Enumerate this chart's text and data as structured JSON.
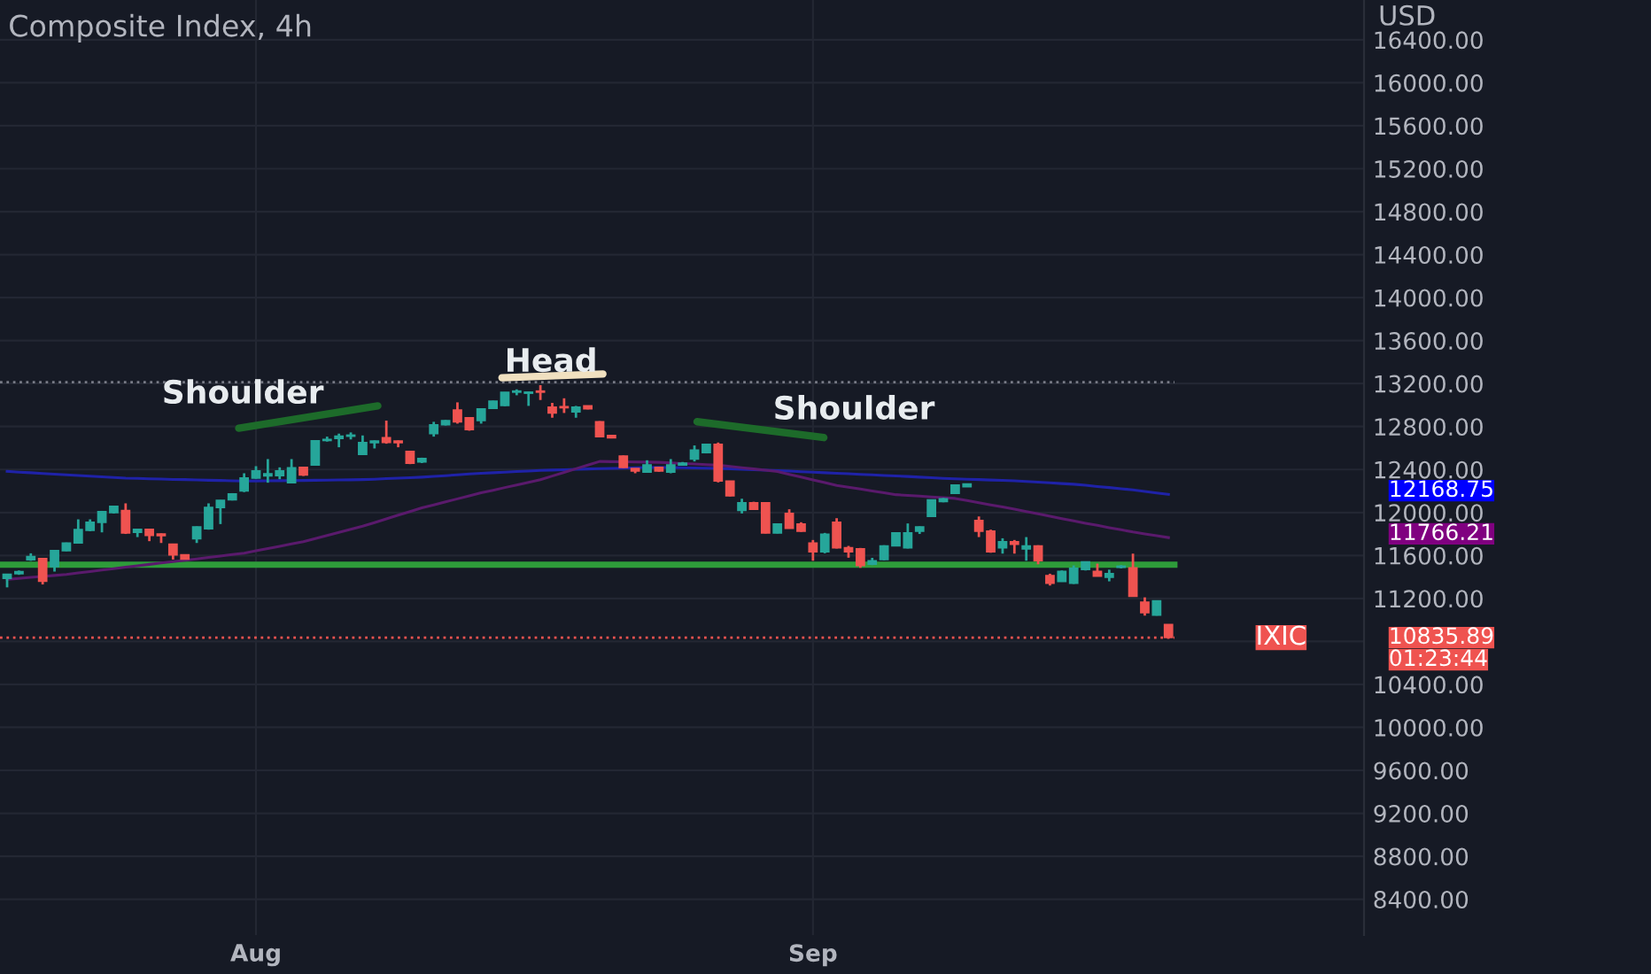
{
  "chart_data": {
    "type": "candlestick",
    "title": "Composite Index, 4h",
    "ylabel": "USD",
    "categories": [
      null,
      null,
      null,
      null,
      null,
      null,
      null,
      null,
      null,
      null,
      null,
      null,
      null,
      null,
      null,
      null,
      null,
      null,
      null,
      null,
      null,
      "Aug",
      null,
      null,
      null,
      null,
      null,
      null,
      null,
      null,
      null,
      null,
      null,
      null,
      null,
      null,
      null,
      null,
      null,
      null,
      null,
      null,
      null,
      null,
      null,
      null,
      null,
      null,
      null,
      null,
      null,
      null,
      null,
      null,
      null,
      null,
      null,
      null,
      null,
      null,
      null,
      null,
      null,
      null,
      null,
      null,
      null,
      null,
      "Sep",
      null,
      null,
      null,
      null,
      null,
      null,
      null,
      null,
      null,
      null,
      null,
      null,
      null,
      null,
      null,
      null,
      null,
      null,
      null,
      null,
      null,
      null,
      null,
      null,
      null,
      null,
      null,
      null,
      null,
      null
    ],
    "ohlc": [
      [
        11386,
        11425,
        11303,
        11425
      ],
      [
        11430,
        11460,
        11420,
        11450
      ],
      [
        11560,
        11620,
        11550,
        11590
      ],
      [
        11570,
        11575,
        11330,
        11360
      ],
      [
        11496,
        11650,
        11450,
        11645
      ],
      [
        11645,
        11720,
        11640,
        11716
      ],
      [
        11716,
        11936,
        11710,
        11840
      ],
      [
        11835,
        11936,
        11826,
        11908
      ],
      [
        11908,
        12015,
        11815,
        12008
      ],
      [
        11998,
        12060,
        11990,
        12057
      ],
      [
        12019,
        12085,
        11800,
        11809
      ],
      [
        11815,
        11845,
        11771,
        11842
      ],
      [
        11842,
        11850,
        11733,
        11787
      ],
      [
        11800,
        11805,
        11716,
        11785
      ],
      [
        11705,
        11710,
        11562,
        11606
      ],
      [
        11606,
        11610,
        11562,
        11566
      ],
      [
        11755,
        11870,
        11716,
        11865
      ],
      [
        11848,
        12085,
        11840,
        12046
      ],
      [
        12046,
        12115,
        11892,
        12112
      ],
      [
        12118,
        12180,
        12112,
        12173
      ],
      [
        12200,
        12365,
        12190,
        12321
      ],
      [
        12321,
        12431,
        12315,
        12387
      ],
      [
        12340,
        12497,
        12277,
        12360
      ],
      [
        12343,
        12420,
        12310,
        12387
      ],
      [
        12277,
        12497,
        12270,
        12415
      ],
      [
        12420,
        12425,
        12340,
        12349
      ],
      [
        12442,
        12670,
        12440,
        12668
      ],
      [
        12670,
        12706,
        12660,
        12680
      ],
      [
        12690,
        12734,
        12607,
        12710
      ],
      [
        12710,
        12745,
        12680,
        12720
      ],
      [
        12541,
        12717,
        12535,
        12651
      ],
      [
        12650,
        12670,
        12596,
        12665
      ],
      [
        12695,
        12855,
        12640,
        12651
      ],
      [
        12665,
        12670,
        12607,
        12650
      ],
      [
        12568,
        12570,
        12450,
        12459
      ],
      [
        12470,
        12510,
        12460,
        12503
      ],
      [
        12734,
        12844,
        12706,
        12816
      ],
      [
        12816,
        12860,
        12810,
        12855
      ],
      [
        12953,
        13025,
        12827,
        12844
      ],
      [
        12882,
        12885,
        12761,
        12772
      ],
      [
        12855,
        12970,
        12827,
        12964
      ],
      [
        12970,
        13040,
        12965,
        13036
      ],
      [
        12997,
        13120,
        12990,
        13118
      ],
      [
        13120,
        13146,
        13091,
        13130
      ],
      [
        13110,
        13125,
        12992,
        13120
      ],
      [
        13130,
        13185,
        13047,
        13120
      ],
      [
        12981,
        13020,
        12882,
        12926
      ],
      [
        12985,
        13063,
        12926,
        12975
      ],
      [
        12937,
        12992,
        12882,
        12981
      ],
      [
        12992,
        12995,
        12960,
        12965
      ],
      [
        12844,
        12850,
        12700,
        12706
      ],
      [
        12717,
        12720,
        12690,
        12695
      ],
      [
        12525,
        12530,
        12415,
        12420
      ],
      [
        12409,
        12410,
        12365,
        12387
      ],
      [
        12376,
        12486,
        12370,
        12442
      ],
      [
        12420,
        12425,
        12380,
        12387
      ],
      [
        12376,
        12497,
        12365,
        12442
      ],
      [
        12442,
        12470,
        12440,
        12460
      ],
      [
        12497,
        12624,
        12475,
        12580
      ],
      [
        12558,
        12640,
        12550,
        12635
      ],
      [
        12635,
        12651,
        12280,
        12293
      ],
      [
        12293,
        12295,
        12150,
        12156
      ],
      [
        12019,
        12128,
        11991,
        12090
      ],
      [
        12090,
        12100,
        12025,
        12030
      ],
      [
        12090,
        12095,
        11805,
        11810
      ],
      [
        11810,
        11895,
        11805,
        11892
      ],
      [
        11991,
        12030,
        11850,
        11853
      ],
      [
        11892,
        11909,
        11820,
        11826
      ],
      [
        11716,
        11744,
        11551,
        11634
      ],
      [
        11634,
        11810,
        11620,
        11798
      ],
      [
        11909,
        11947,
        11665,
        11672
      ],
      [
        11672,
        11689,
        11579,
        11634
      ],
      [
        11661,
        11670,
        11485,
        11507
      ],
      [
        11518,
        11578,
        11510,
        11551
      ],
      [
        11562,
        11695,
        11555,
        11689
      ],
      [
        11689,
        11815,
        11685,
        11810
      ],
      [
        11672,
        11898,
        11665,
        11810
      ],
      [
        11826,
        11870,
        11800,
        11865
      ],
      [
        11964,
        12120,
        11960,
        12117
      ],
      [
        12101,
        12135,
        12095,
        12128
      ],
      [
        12178,
        12260,
        12175,
        12255
      ],
      [
        12240,
        12270,
        12238,
        12266
      ],
      [
        11925,
        11963,
        11771,
        11826
      ],
      [
        11826,
        11840,
        11625,
        11634
      ],
      [
        11672,
        11760,
        11617,
        11727
      ],
      [
        11727,
        11744,
        11617,
        11705
      ],
      [
        11661,
        11771,
        11551,
        11689
      ],
      [
        11689,
        11695,
        11518,
        11551
      ],
      [
        11413,
        11430,
        11320,
        11342
      ],
      [
        11359,
        11460,
        11355,
        11452
      ],
      [
        11342,
        11507,
        11335,
        11480
      ],
      [
        11469,
        11545,
        11460,
        11540
      ],
      [
        11452,
        11524,
        11405,
        11408
      ],
      [
        11397,
        11468,
        11359,
        11430
      ],
      [
        11490,
        11510,
        11480,
        11500
      ],
      [
        11485,
        11617,
        11215,
        11221
      ],
      [
        11166,
        11210,
        11040,
        11067
      ],
      [
        11045,
        11180,
        11040,
        11177
      ],
      [
        10957,
        10960,
        10830,
        10835.89
      ]
    ],
    "series": [
      {
        "type": "line",
        "color": "#1f22a8",
        "values": [
          12383,
          12376,
          12370,
          12363,
          12356,
          12350,
          12344,
          12338,
          12332,
          12326,
          12320,
          12317,
          12314,
          12311,
          12308,
          12306,
          12303,
          12300,
          12298,
          12295,
          12293,
          12294,
          12295,
          12296,
          12297,
          12298,
          12300,
          12301,
          12303,
          12304,
          12306,
          12310,
          12315,
          12320,
          12324,
          12329,
          12336,
          12343,
          12351,
          12358,
          12365,
          12370,
          12375,
          12381,
          12386,
          12391,
          12395,
          12398,
          12402,
          12405,
          12409,
          12411,
          12413,
          12416,
          12418,
          12420,
          12418,
          12416,
          12414,
          12412,
          12410,
          12406,
          12402,
          12398,
          12394,
          12390,
          12385,
          12380,
          12375,
          12370,
          12365,
          12360,
          12355,
          12350,
          12345,
          12340,
          12335,
          12329,
          12324,
          12318,
          12313,
          12309,
          12306,
          12302,
          12299,
          12295,
          12289,
          12282,
          12276,
          12269,
          12263,
          12253,
          12242,
          12232,
          12221,
          12210,
          12196,
          12182,
          12168.75
        ]
      },
      {
        "type": "line",
        "color": "#5a1a6c",
        "values": [
          11378,
          11387,
          11396,
          11405,
          11414,
          11423,
          11437,
          11450,
          11464,
          11477,
          11491,
          11504,
          11517,
          11530,
          11542,
          11555,
          11568,
          11582,
          11595,
          11609,
          11622,
          11643,
          11664,
          11686,
          11707,
          11728,
          11757,
          11786,
          11814,
          11843,
          11872,
          11906,
          11940,
          11975,
          12009,
          12043,
          12071,
          12099,
          12127,
          12155,
          12183,
          12207,
          12232,
          12256,
          12281,
          12305,
          12339,
          12373,
          12407,
          12441,
          12475,
          12473,
          12472,
          12470,
          12469,
          12467,
          12462,
          12456,
          12451,
          12445,
          12440,
          12428,
          12417,
          12405,
          12393,
          12381,
          12355,
          12329,
          12304,
          12278,
          12252,
          12235,
          12218,
          12200,
          12183,
          12166,
          12159,
          12152,
          12145,
          12138,
          12131,
          12111,
          12091,
          12071,
          12051,
          12031,
          12009,
          11987,
          11965,
          11943,
          11921,
          11900,
          11880,
          11859,
          11839,
          11818,
          11801,
          11783,
          11766.21
        ]
      }
    ],
    "ref_lines": [
      {
        "axis": "y",
        "value": 11514,
        "color": "#2e9c3a",
        "line_style": "solid"
      },
      {
        "axis": "y",
        "value": 13212,
        "color": "#787b86",
        "line_style": "dotted"
      },
      {
        "axis": "y",
        "value": 10835.89,
        "color": "#ef5350",
        "line_style": "dotted"
      }
    ],
    "annotations": [
      "Shoulder",
      "Head",
      "Shoulder",
      "12168.75",
      "11766.21",
      "IXIC",
      "10835.89",
      "01:23:44"
    ],
    "ylim": [
      8067,
      16770
    ],
    "yticks": [
      {
        "value": 8400,
        "label": "8400.00"
      },
      {
        "value": 8800,
        "label": "8800.00"
      },
      {
        "value": 9200,
        "label": "9200.00"
      },
      {
        "value": 9600,
        "label": "9600.00"
      },
      {
        "value": 10000,
        "label": "10000.00"
      },
      {
        "value": 10400,
        "label": "10400.00"
      },
      {
        "value": 10800,
        "label": null
      },
      {
        "value": 11200,
        "label": "11200.00"
      },
      {
        "value": 11600,
        "label": "11600.00"
      },
      {
        "value": 12000,
        "label": "12000.00"
      },
      {
        "value": 12400,
        "label": "12400.00"
      },
      {
        "value": 12800,
        "label": "12800.00"
      },
      {
        "value": 13200,
        "label": "13200.00"
      },
      {
        "value": 13600,
        "label": "13600.00"
      },
      {
        "value": 14000,
        "label": "14000.00"
      },
      {
        "value": 14400,
        "label": "14400.00"
      },
      {
        "value": 14800,
        "label": "14800.00"
      },
      {
        "value": 15200,
        "label": "15200.00"
      },
      {
        "value": 15600,
        "label": "15600.00"
      },
      {
        "value": 16000,
        "label": "16000.00"
      },
      {
        "value": 16400,
        "label": "16400.00"
      }
    ],
    "grid": true
  }
}
